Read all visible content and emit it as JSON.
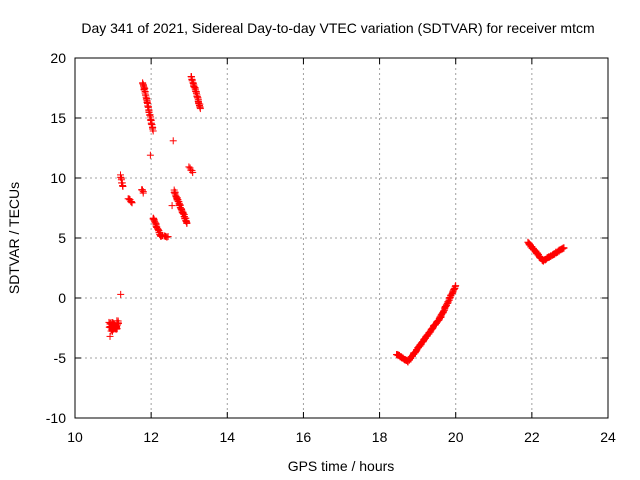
{
  "chart_data": {
    "type": "scatter",
    "title": "Day 341 of 2021, Sidereal Day-to-day VTEC variation (SDTVAR) for receiver mtcm",
    "xlabel": "GPS time / hours",
    "ylabel": "SDTVAR / TECUs",
    "xlim": [
      10,
      24
    ],
    "ylim": [
      -10,
      20
    ],
    "xticks": [
      10,
      12,
      14,
      16,
      18,
      20,
      22,
      24
    ],
    "yticks": [
      -10,
      -5,
      0,
      5,
      10,
      15,
      20
    ],
    "xtick_labels": [
      "10",
      "12",
      "14",
      "16",
      "18",
      "20",
      "22",
      "24"
    ],
    "ytick_labels": [
      "-10",
      "-5",
      "0",
      "5",
      "10",
      "15",
      "20"
    ],
    "grid": true,
    "marker": "+",
    "color": "#ff0000",
    "series": [
      {
        "name": "SDTVAR",
        "segments": [
          {
            "x": [
              10.9,
              11.1
            ],
            "y": [
              -2.2,
              -2.4
            ],
            "jitter": 0.5,
            "n": 40
          },
          {
            "x": [
              10.95,
              11.15
            ],
            "y": [
              -2.8,
              -2.0
            ],
            "jitter": 0.35,
            "n": 20
          },
          {
            "x": [
              11.2,
              11.25
            ],
            "y": [
              10.2,
              9.3
            ],
            "jitter": 0.2,
            "n": 8
          },
          {
            "x": [
              11.4,
              11.5
            ],
            "y": [
              8.3,
              7.9
            ],
            "jitter": 0.15,
            "n": 8
          },
          {
            "x": [
              11.75,
              11.8
            ],
            "y": [
              9.1,
              8.8
            ],
            "jitter": 0.15,
            "n": 6
          },
          {
            "x": [
              11.78,
              12.05
            ],
            "y": [
              18.0,
              14.0
            ],
            "jitter": 0.2,
            "n": 40
          },
          {
            "x": [
              12.05,
              12.25
            ],
            "y": [
              6.7,
              5.2
            ],
            "jitter": 0.15,
            "n": 22
          },
          {
            "x": [
              12.25,
              12.45
            ],
            "y": [
              5.2,
              5.1
            ],
            "jitter": 0.1,
            "n": 8
          },
          {
            "x": [
              12.6,
              12.95
            ],
            "y": [
              8.9,
              6.2
            ],
            "jitter": 0.2,
            "n": 44
          },
          {
            "x": [
              13.05,
              13.3
            ],
            "y": [
              18.5,
              15.8
            ],
            "jitter": 0.2,
            "n": 34
          },
          {
            "x": [
              13.0,
              13.1
            ],
            "y": [
              10.9,
              10.5
            ],
            "jitter": 0.1,
            "n": 5
          },
          {
            "x": [
              18.45,
              18.75
            ],
            "y": [
              -4.7,
              -5.3
            ],
            "jitter": 0.1,
            "n": 28
          },
          {
            "x": [
              18.75,
              19.6
            ],
            "y": [
              -5.3,
              -1.6
            ],
            "jitter": 0.1,
            "n": 80
          },
          {
            "x": [
              19.6,
              20.0
            ],
            "y": [
              -1.6,
              1.0
            ],
            "jitter": 0.1,
            "n": 40
          },
          {
            "x": [
              21.9,
              22.3
            ],
            "y": [
              4.6,
              3.1
            ],
            "jitter": 0.15,
            "n": 40
          },
          {
            "x": [
              22.3,
              22.85
            ],
            "y": [
              3.1,
              4.2
            ],
            "jitter": 0.1,
            "n": 40
          }
        ],
        "points": [
          {
            "x": 11.2,
            "y": 0.3
          },
          {
            "x": 11.98,
            "y": 11.9
          },
          {
            "x": 12.58,
            "y": 13.1
          },
          {
            "x": 12.55,
            "y": 7.7
          },
          {
            "x": 11.1,
            "y": -1.9
          },
          {
            "x": 10.92,
            "y": -3.2
          }
        ]
      }
    ]
  }
}
